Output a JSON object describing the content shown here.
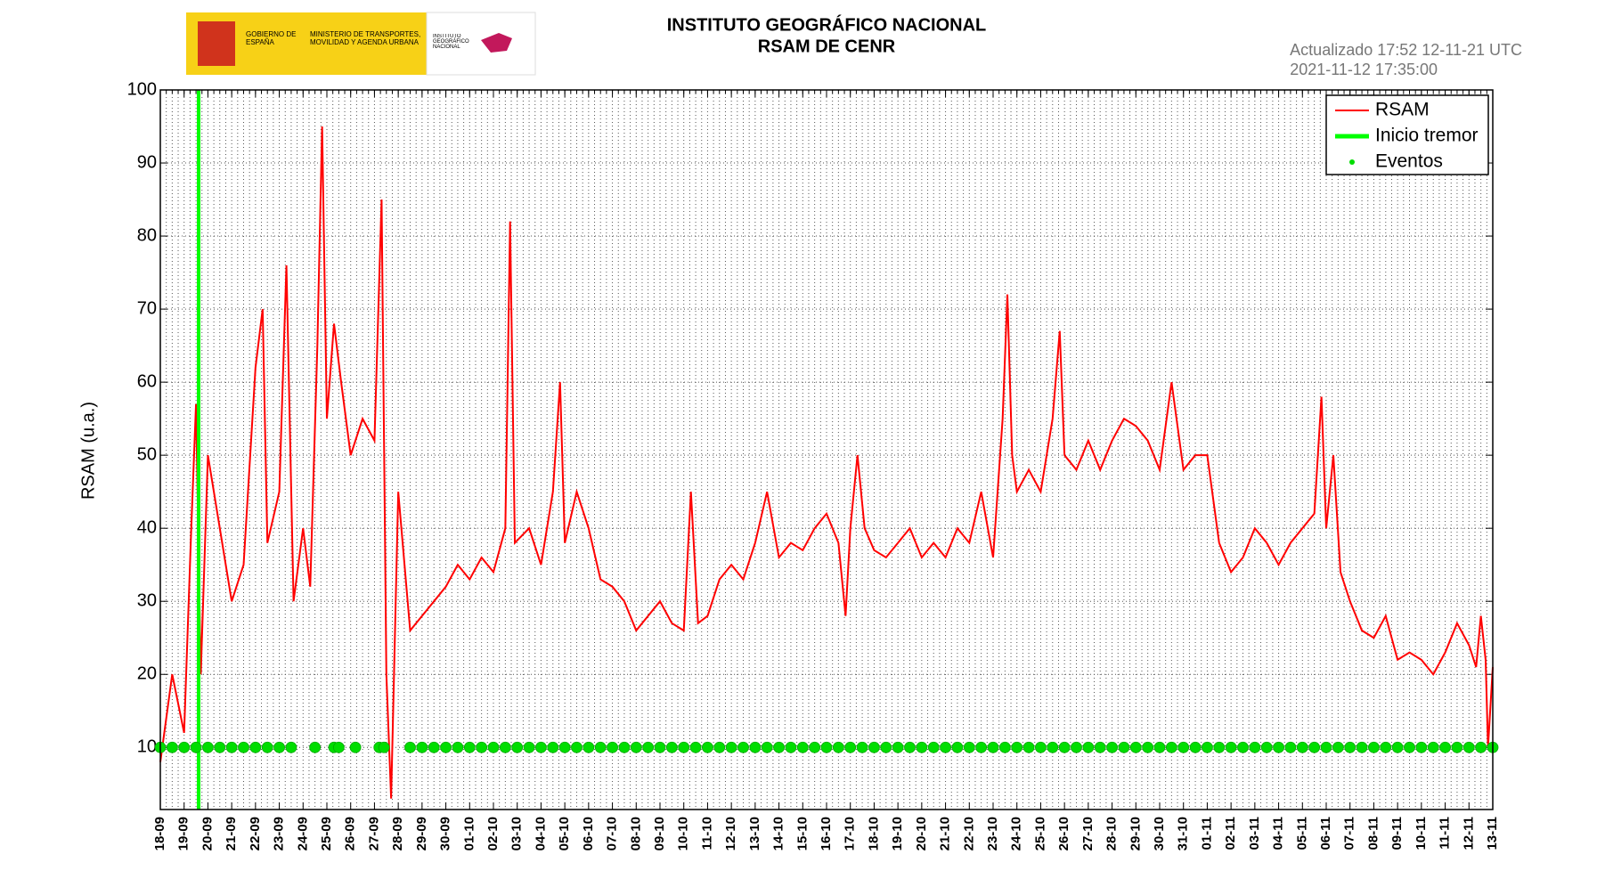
{
  "header": {
    "logo_left": "GOBIERNO DE ESPAÑA",
    "logo_middle": "MINISTERIO DE TRANSPORTES, MOVILIDAD Y AGENDA URBANA",
    "logo_right": "INSTITUTO GEOGRÁFICO NACIONAL"
  },
  "chart_data": {
    "type": "line",
    "title": "INSTITUTO GEOGRÁFICO NACIONAL",
    "subtitle": "RSAM DE CENR",
    "annotations": [
      "Actualizado 17:52 12-11-21 UTC",
      "2021-11-12 17:35:00"
    ],
    "ylabel": "RSAM (u.a.)",
    "xlim": [
      0,
      56
    ],
    "ylim": [
      1.5,
      100
    ],
    "yticks": [
      10,
      20,
      30,
      40,
      50,
      60,
      70,
      80,
      90,
      100
    ],
    "xticks": [
      {
        "value": 0,
        "label": "18-09"
      },
      {
        "value": 1,
        "label": "19-09"
      },
      {
        "value": 2,
        "label": "20-09"
      },
      {
        "value": 3,
        "label": "21-09"
      },
      {
        "value": 4,
        "label": "22-09"
      },
      {
        "value": 5,
        "label": "23-09"
      },
      {
        "value": 6,
        "label": "24-09"
      },
      {
        "value": 7,
        "label": "25-09"
      },
      {
        "value": 8,
        "label": "26-09"
      },
      {
        "value": 9,
        "label": "27-09"
      },
      {
        "value": 10,
        "label": "28-09"
      },
      {
        "value": 11,
        "label": "29-09"
      },
      {
        "value": 12,
        "label": "30-09"
      },
      {
        "value": 13,
        "label": "01-10"
      },
      {
        "value": 14,
        "label": "02-10"
      },
      {
        "value": 15,
        "label": "03-10"
      },
      {
        "value": 16,
        "label": "04-10"
      },
      {
        "value": 17,
        "label": "05-10"
      },
      {
        "value": 18,
        "label": "06-10"
      },
      {
        "value": 19,
        "label": "07-10"
      },
      {
        "value": 20,
        "label": "08-10"
      },
      {
        "value": 21,
        "label": "09-10"
      },
      {
        "value": 22,
        "label": "10-10"
      },
      {
        "value": 23,
        "label": "11-10"
      },
      {
        "value": 24,
        "label": "12-10"
      },
      {
        "value": 25,
        "label": "13-10"
      },
      {
        "value": 26,
        "label": "14-10"
      },
      {
        "value": 27,
        "label": "15-10"
      },
      {
        "value": 28,
        "label": "16-10"
      },
      {
        "value": 29,
        "label": "17-10"
      },
      {
        "value": 30,
        "label": "18-10"
      },
      {
        "value": 31,
        "label": "19-10"
      },
      {
        "value": 32,
        "label": "20-10"
      },
      {
        "value": 33,
        "label": "21-10"
      },
      {
        "value": 34,
        "label": "22-10"
      },
      {
        "value": 35,
        "label": "23-10"
      },
      {
        "value": 36,
        "label": "24-10"
      },
      {
        "value": 37,
        "label": "25-10"
      },
      {
        "value": 38,
        "label": "26-10"
      },
      {
        "value": 39,
        "label": "27-10"
      },
      {
        "value": 40,
        "label": "28-10"
      },
      {
        "value": 41,
        "label": "29-10"
      },
      {
        "value": 42,
        "label": "30-10"
      },
      {
        "value": 43,
        "label": "31-10"
      },
      {
        "value": 44,
        "label": "01-11"
      },
      {
        "value": 45,
        "label": "02-11"
      },
      {
        "value": 46,
        "label": "03-11"
      },
      {
        "value": 47,
        "label": "04-11"
      },
      {
        "value": 48,
        "label": "05-11"
      },
      {
        "value": 49,
        "label": "06-11"
      },
      {
        "value": 50,
        "label": "07-11"
      },
      {
        "value": 51,
        "label": "08-11"
      },
      {
        "value": 52,
        "label": "09-11"
      },
      {
        "value": 53,
        "label": "10-11"
      },
      {
        "value": 54,
        "label": "11-11"
      },
      {
        "value": 55,
        "label": "12-11"
      },
      {
        "value": 56,
        "label": "13-11"
      }
    ],
    "grid": true,
    "legend": "upper right",
    "series": [
      {
        "name": "RSAM",
        "color": "#ff0000",
        "kind": "line",
        "x": [
          0,
          0.5,
          1,
          1.3,
          1.5,
          1.7,
          2,
          2.5,
          3,
          3.5,
          4,
          4.3,
          4.5,
          5,
          5.3,
          5.6,
          6,
          6.3,
          6.6,
          6.8,
          7,
          7.3,
          7.6,
          8,
          8.5,
          9,
          9.3,
          9.5,
          9.7,
          10,
          10.5,
          11,
          11.5,
          12,
          12.5,
          13,
          13.5,
          14,
          14.5,
          14.7,
          14.9,
          15.5,
          16,
          16.5,
          16.8,
          17,
          17.5,
          18,
          18.5,
          19,
          19.5,
          20,
          20.5,
          21,
          21.5,
          22,
          22.3,
          22.6,
          23,
          23.5,
          24,
          24.5,
          25,
          25.5,
          26,
          26.5,
          27,
          27.5,
          28,
          28.5,
          28.8,
          29,
          29.3,
          29.6,
          30,
          30.5,
          31,
          31.5,
          32,
          32.5,
          33,
          33.5,
          34,
          34.5,
          35,
          35.4,
          35.6,
          35.8,
          36,
          36.5,
          37,
          37.5,
          37.8,
          38,
          38.5,
          39,
          39.5,
          40,
          40.5,
          41,
          41.5,
          42,
          42.5,
          43,
          43.5,
          44,
          44.5,
          45,
          45.5,
          46,
          46.5,
          47,
          47.5,
          48,
          48.5,
          48.8,
          49,
          49.3,
          49.6,
          50,
          50.5,
          51,
          51.5,
          52,
          52.5,
          53,
          53.5,
          54,
          54.5,
          55,
          55.3,
          55.5,
          55.7,
          55.8,
          56
        ],
        "values": [
          8,
          20,
          12,
          40,
          57,
          20,
          50,
          40,
          30,
          35,
          62,
          70,
          38,
          45,
          76,
          30,
          40,
          32,
          65,
          95,
          55,
          68,
          60,
          50,
          55,
          52,
          85,
          20,
          3,
          45,
          26,
          28,
          30,
          32,
          35,
          33,
          36,
          34,
          40,
          82,
          38,
          40,
          35,
          45,
          60,
          38,
          45,
          40,
          33,
          32,
          30,
          26,
          28,
          30,
          27,
          26,
          45,
          27,
          28,
          33,
          35,
          33,
          38,
          45,
          36,
          38,
          37,
          40,
          42,
          38,
          28,
          40,
          50,
          40,
          37,
          36,
          38,
          40,
          36,
          38,
          36,
          40,
          38,
          45,
          36,
          55,
          72,
          50,
          45,
          48,
          45,
          55,
          67,
          50,
          48,
          52,
          48,
          52,
          55,
          54,
          52,
          48,
          60,
          48,
          50,
          50,
          38,
          34,
          36,
          40,
          38,
          35,
          38,
          40,
          42,
          58,
          40,
          50,
          34,
          30,
          26,
          25,
          28,
          22,
          23,
          22,
          20,
          23,
          27,
          24,
          21,
          28,
          22,
          10,
          21
        ]
      },
      {
        "name": "Inicio tremor",
        "color": "#00ff00",
        "kind": "vline",
        "x": [
          1.61
        ]
      },
      {
        "name": "Eventos",
        "color": "#00dd00",
        "kind": "scatter",
        "x": [
          0,
          0.5,
          1,
          1.5,
          2,
          2.5,
          3,
          3.5,
          4,
          4.5,
          5,
          5.5,
          6.5,
          7.3,
          7.5,
          8.2,
          9.2,
          9.4,
          10.5,
          11,
          11.5,
          12,
          12.5,
          13,
          13.5,
          14,
          14.5,
          15,
          15.5,
          16,
          16.5,
          17,
          17.5,
          18,
          18.5,
          19,
          19.5,
          20,
          20.5,
          21,
          21.5,
          22,
          22.5,
          23,
          23.5,
          24,
          24.5,
          25,
          25.5,
          26,
          26.5,
          27,
          27.5,
          28,
          28.5,
          29,
          29.5,
          30,
          30.5,
          31,
          31.5,
          32,
          32.5,
          33,
          33.5,
          34,
          34.5,
          35,
          35.5,
          36,
          36.5,
          37,
          37.5,
          38,
          38.5,
          39,
          39.5,
          40,
          40.5,
          41,
          41.5,
          42,
          42.5,
          43,
          43.5,
          44,
          44.5,
          45,
          45.5,
          46,
          46.5,
          47,
          47.5,
          48,
          48.5,
          49,
          49.5,
          50,
          50.5,
          51,
          51.5,
          52,
          52.5,
          53,
          53.5,
          54,
          54.5,
          55,
          55.5,
          56
        ],
        "values": [
          10,
          10,
          10,
          10,
          10,
          10,
          10,
          10,
          10,
          10,
          10,
          10,
          10,
          10,
          10,
          10,
          10,
          10,
          10,
          10,
          10,
          10,
          10,
          10,
          10,
          10,
          10,
          10,
          10,
          10,
          10,
          10,
          10,
          10,
          10,
          10,
          10,
          10,
          10,
          10,
          10,
          10,
          10,
          10,
          10,
          10,
          10,
          10,
          10,
          10,
          10,
          10,
          10,
          10,
          10,
          10,
          10,
          10,
          10,
          10,
          10,
          10,
          10,
          10,
          10,
          10,
          10,
          10,
          10,
          10,
          10,
          10,
          10,
          10,
          10,
          10,
          10,
          10,
          10,
          10,
          10,
          10,
          10,
          10,
          10,
          10,
          10,
          10,
          10,
          10,
          10,
          10,
          10,
          10,
          10,
          10,
          10,
          10,
          10,
          10,
          10,
          10,
          10,
          10,
          10,
          10,
          10,
          10,
          10,
          10
        ]
      }
    ]
  }
}
